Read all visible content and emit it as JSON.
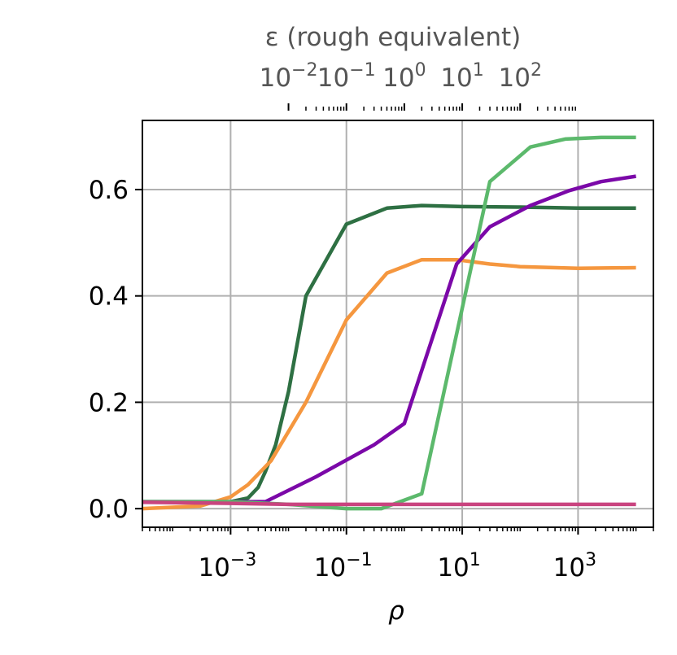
{
  "chart_data": {
    "type": "line",
    "xlabel": "ρ",
    "xscale": "log",
    "xlim": [
      3e-05,
      20000
    ],
    "ylim": [
      -0.035,
      0.73
    ],
    "grid": true,
    "legend": "none",
    "x_ticks": [
      {
        "base": "10",
        "exp": "−3",
        "value": 0.001
      },
      {
        "base": "10",
        "exp": "−1",
        "value": 0.1
      },
      {
        "base": "10",
        "exp": "1",
        "value": 10
      },
      {
        "base": "10",
        "exp": "3",
        "value": 1000
      }
    ],
    "y_ticks": [
      {
        "label": "0.0",
        "value": 0.0
      },
      {
        "label": "0.2",
        "value": 0.2
      },
      {
        "label": "0.4",
        "value": 0.4
      },
      {
        "label": "0.6",
        "value": 0.6
      }
    ],
    "top_axis": {
      "label": "ε (rough equivalent)",
      "scale": "log",
      "ticks": [
        {
          "base": "10",
          "exp": "−2",
          "value": 0.01
        },
        {
          "base": "10",
          "exp": "−1",
          "value": 0.1
        },
        {
          "base": "10",
          "exp": "0",
          "value": 1
        },
        {
          "base": "10",
          "exp": "1",
          "value": 10
        },
        {
          "base": "10",
          "exp": "2",
          "value": 100
        }
      ],
      "rho_at_eps": [
        [
          0.1,
          0.1
        ],
        [
          1,
          1
        ],
        [
          10,
          10
        ],
        [
          100,
          100
        ]
      ]
    },
    "series": [
      {
        "color": "#2e7043",
        "x": [
          3e-05,
          0.0003,
          0.001,
          0.002,
          0.003,
          0.004,
          0.006,
          0.01,
          0.02,
          0.1,
          0.5,
          2,
          10,
          100,
          1000,
          10000
        ],
        "y": [
          0.013,
          0.013,
          0.013,
          0.02,
          0.04,
          0.07,
          0.12,
          0.22,
          0.4,
          0.535,
          0.565,
          0.57,
          0.568,
          0.567,
          0.565,
          0.565
        ]
      },
      {
        "color": "#f5973f",
        "x": [
          3e-05,
          0.0003,
          0.001,
          0.002,
          0.005,
          0.02,
          0.1,
          0.5,
          2,
          8,
          30,
          100,
          1000,
          10000
        ],
        "y": [
          0.0,
          0.005,
          0.022,
          0.045,
          0.09,
          0.2,
          0.355,
          0.443,
          0.468,
          0.468,
          0.46,
          0.455,
          0.452,
          0.453
        ]
      },
      {
        "color": "#7b08a8",
        "x": [
          3e-05,
          0.001,
          0.004,
          0.03,
          0.3,
          1,
          8,
          30,
          150,
          700,
          2500,
          10000
        ],
        "y": [
          0.013,
          0.013,
          0.013,
          0.06,
          0.12,
          0.16,
          0.46,
          0.53,
          0.57,
          0.598,
          0.615,
          0.625
        ]
      },
      {
        "color": "#5cb96c",
        "x": [
          3e-05,
          0.001,
          0.01,
          0.1,
          0.4,
          2,
          30,
          150,
          600,
          2500,
          10000
        ],
        "y": [
          0.013,
          0.013,
          0.008,
          0.0,
          0.0,
          0.028,
          0.615,
          0.68,
          0.695,
          0.698,
          0.698
        ]
      },
      {
        "color": "#c9447f",
        "x": [
          3e-05,
          0.001,
          0.01,
          0.1,
          1,
          10,
          100,
          1000,
          10000
        ],
        "y": [
          0.012,
          0.01,
          0.008,
          0.008,
          0.008,
          0.008,
          0.008,
          0.008,
          0.008
        ]
      }
    ]
  },
  "colors": {
    "grid": "#b0b0b0",
    "spine": "#000000",
    "top_axis": "#555555"
  }
}
